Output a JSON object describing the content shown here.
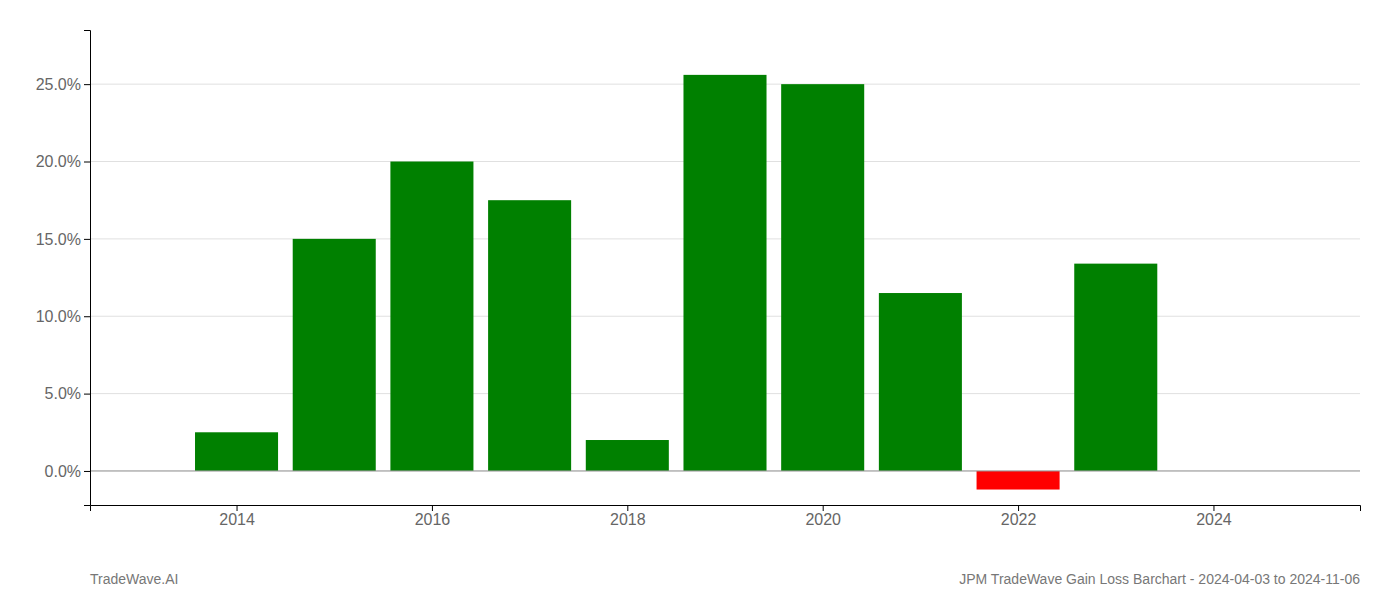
{
  "chart_data": {
    "type": "bar",
    "title": "JPM TradeWave Gain Loss Barchart - 2024-04-03 to 2024-11-06",
    "annotations": [
      "TradeWave.AI"
    ],
    "x": [
      2014,
      2015,
      2016,
      2017,
      2018,
      2019,
      2020,
      2021,
      2022,
      2023
    ],
    "values": [
      0.025,
      0.15,
      0.2,
      0.175,
      0.02,
      0.256,
      0.25,
      0.115,
      -0.012,
      0.134
    ],
    "colors": [
      "#008000",
      "#008000",
      "#008000",
      "#008000",
      "#008000",
      "#008000",
      "#008000",
      "#008000",
      "#ff0000",
      "#008000"
    ],
    "xlim": [
      2012.5,
      2025.5
    ],
    "ylim": [
      -0.022,
      0.285
    ],
    "xticks": [
      2014,
      2016,
      2018,
      2020,
      2022,
      2024
    ],
    "yticks": [
      {
        "value": 0.0,
        "label": "0.0%"
      },
      {
        "value": 0.05,
        "label": "5.0%"
      },
      {
        "value": 0.1,
        "label": "10.0%"
      },
      {
        "value": 0.15,
        "label": "15.0%"
      },
      {
        "value": 0.2,
        "label": "20.0%"
      },
      {
        "value": 0.25,
        "label": "25.0%"
      }
    ],
    "grid": true
  }
}
